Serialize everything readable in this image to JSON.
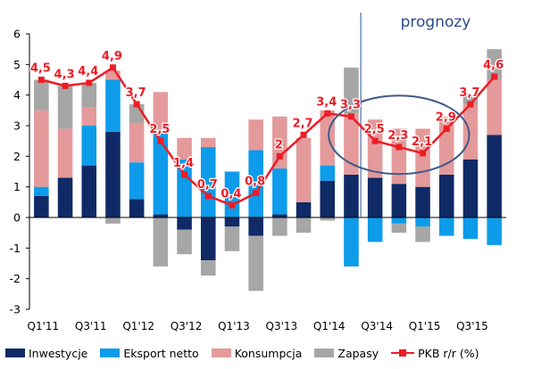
{
  "chart_data": {
    "type": "bar",
    "stacked": true,
    "annotation": "prognozy",
    "ylim": [
      -3,
      6
    ],
    "yticks": [
      -3,
      -2,
      -1,
      0,
      1,
      2,
      3,
      4,
      5,
      6
    ],
    "grid": false,
    "legend_position": "bottom",
    "categories": [
      "Q1'11",
      "Q2'11",
      "Q3'11",
      "Q4'11",
      "Q1'12",
      "Q2'12",
      "Q3'12",
      "Q4'12",
      "Q1'13",
      "Q2'13",
      "Q3'13",
      "Q4'13",
      "Q1'14",
      "Q2'14",
      "Q3'14",
      "Q4'14",
      "Q1'15",
      "Q2'15",
      "Q3'15",
      "Q4'15"
    ],
    "xtick_labels": [
      "Q1'11",
      "Q3'11",
      "Q1'12",
      "Q3'12",
      "Q1'13",
      "Q3'13",
      "Q1'14",
      "Q3'14",
      "Q1'15",
      "Q3'15"
    ],
    "series": [
      {
        "name": "Inwestycje",
        "color": "#0f2a66",
        "values": [
          0.7,
          1.3,
          1.7,
          2.8,
          0.6,
          0.1,
          -0.4,
          -1.4,
          -0.3,
          -0.6,
          0.1,
          0.5,
          1.2,
          1.4,
          1.3,
          1.1,
          1.0,
          1.4,
          1.9,
          2.7
        ]
      },
      {
        "name": "Eksport netto",
        "color": "#0d9bea",
        "values": [
          0.3,
          0.0,
          1.3,
          1.7,
          1.2,
          2.7,
          1.9,
          2.3,
          1.5,
          2.2,
          1.5,
          0.0,
          0.5,
          -1.6,
          -0.8,
          -0.2,
          -0.3,
          -0.6,
          -0.7,
          -0.9
        ]
      },
      {
        "name": "Konsumpcja",
        "color": "#e49a9a",
        "values": [
          2.5,
          1.6,
          0.6,
          0.3,
          1.3,
          1.3,
          0.7,
          0.3,
          0.0,
          1.0,
          1.7,
          2.1,
          1.8,
          2.0,
          1.9,
          1.8,
          1.9,
          1.9,
          1.8,
          1.8
        ]
      },
      {
        "name": "Zapasy",
        "color": "#a6a6a6",
        "values": [
          1.0,
          1.4,
          0.8,
          -0.2,
          0.6,
          -1.6,
          -0.8,
          -0.5,
          -0.8,
          -1.8,
          -0.6,
          -0.5,
          -0.1,
          1.5,
          0.0,
          -0.3,
          -0.5,
          0.0,
          0.3,
          1.0
        ]
      }
    ],
    "line": {
      "name": "PKB r/r (%)",
      "color": "#ee1c25",
      "values": [
        4.5,
        4.3,
        4.4,
        4.9,
        3.7,
        2.5,
        1.4,
        0.7,
        0.4,
        0.8,
        2.0,
        2.7,
        3.4,
        3.3,
        2.5,
        2.3,
        2.1,
        2.9,
        3.7,
        4.6
      ],
      "labels": [
        "4,5",
        "4,3",
        "4,4",
        "4,9",
        "3,7",
        "2,5",
        "1,4",
        "0,7",
        "0,4",
        "0,8",
        "2",
        "2,7",
        "3,4",
        "3,3",
        "2,5",
        "2,3",
        "2,1",
        "2,9",
        "3,7",
        "4,6"
      ]
    },
    "forecast_start_after": "Q2'14",
    "highlight_ellipse_around": [
      "Q3'14",
      "Q4'14",
      "Q1'15"
    ]
  },
  "legend": {
    "items": [
      "Inwestycje",
      "Eksport netto",
      "Konsumpcja",
      "Zapasy",
      "PKB r/r (%)"
    ]
  }
}
